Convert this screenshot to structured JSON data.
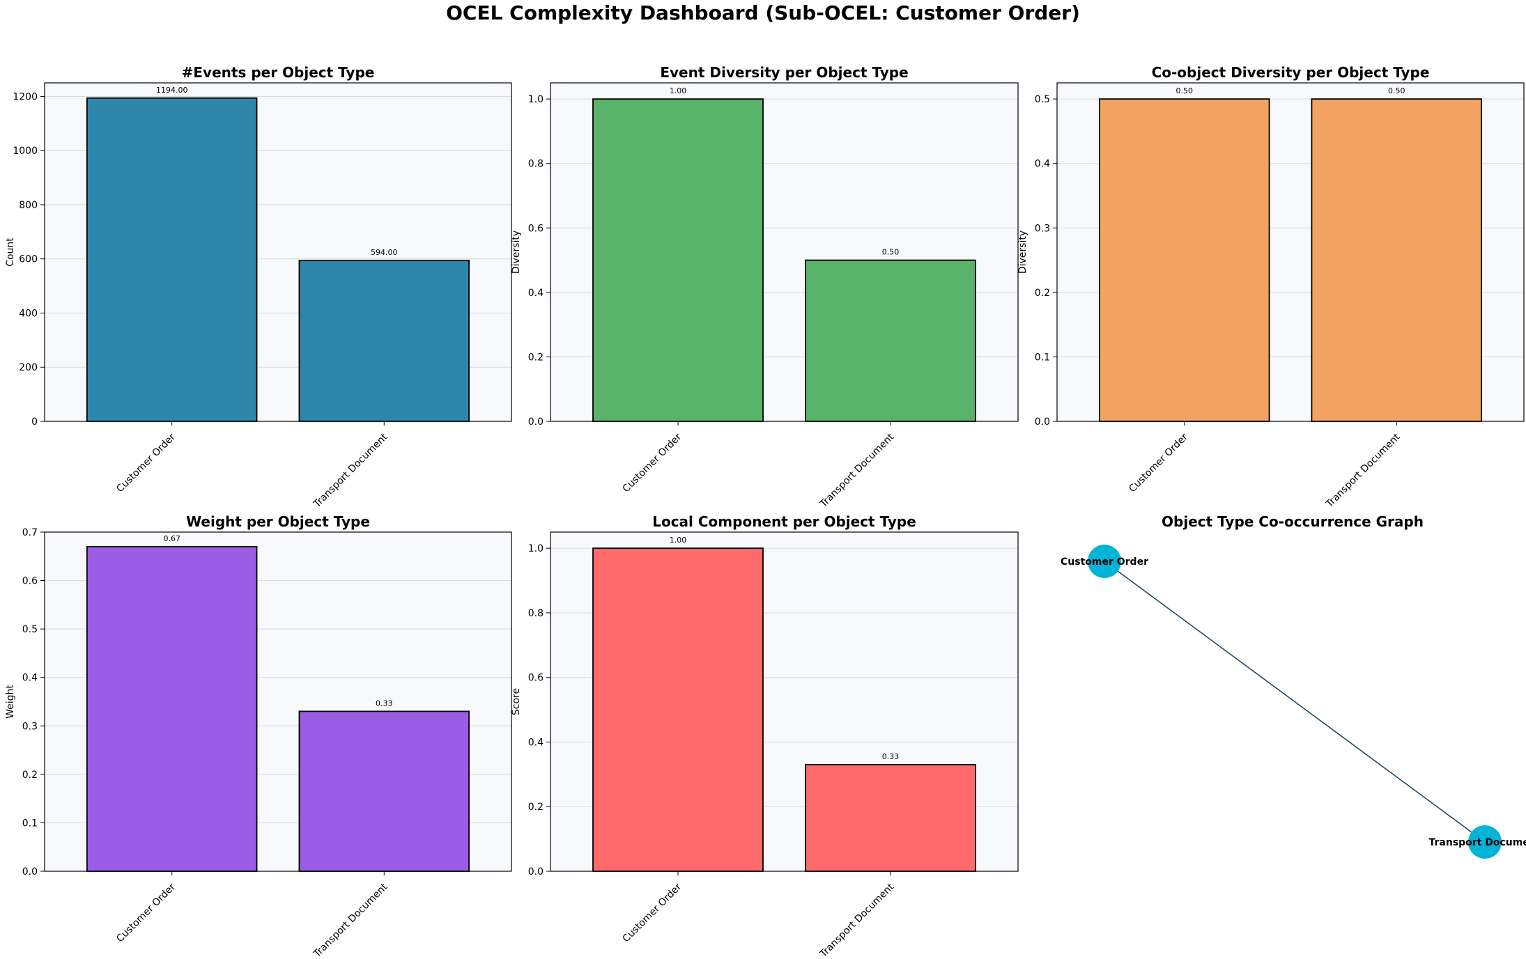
{
  "title": "OCEL Complexity Dashboard (Sub-OCEL: Customer Order)",
  "chart_data": [
    {
      "type": "bar",
      "title": "#Events per Object Type",
      "xlabel": "",
      "ylabel": "Count",
      "categories": [
        "Customer Order",
        "Transport Document"
      ],
      "values": [
        1194,
        594
      ],
      "value_labels": [
        "1194.00",
        "594.00"
      ],
      "ylim": [
        0,
        1250
      ],
      "yticks": [
        0,
        200,
        400,
        600,
        800,
        1000,
        1200
      ],
      "ytick_labels": [
        "0",
        "200",
        "400",
        "600",
        "800",
        "1000",
        "1200"
      ],
      "color": "#2E86AB",
      "grid": "horizontal"
    },
    {
      "type": "bar",
      "title": "Event Diversity per Object Type",
      "xlabel": "",
      "ylabel": "Diversity",
      "categories": [
        "Customer Order",
        "Transport Document"
      ],
      "values": [
        1.0,
        0.5
      ],
      "value_labels": [
        "1.00",
        "0.50"
      ],
      "ylim": [
        0,
        1.05
      ],
      "yticks": [
        0,
        0.2,
        0.4,
        0.6,
        0.8,
        1.0
      ],
      "ytick_labels": [
        "0.0",
        "0.2",
        "0.4",
        "0.6",
        "0.8",
        "1.0"
      ],
      "color": "#59B36A",
      "grid": "horizontal"
    },
    {
      "type": "bar",
      "title": "Co-object Diversity per Object Type",
      "xlabel": "",
      "ylabel": "Diversity",
      "categories": [
        "Customer Order",
        "Transport Document"
      ],
      "values": [
        0.5,
        0.5
      ],
      "value_labels": [
        "0.50",
        "0.50"
      ],
      "ylim": [
        0,
        0.525
      ],
      "yticks": [
        0,
        0.1,
        0.2,
        0.3,
        0.4,
        0.5
      ],
      "ytick_labels": [
        "0.0",
        "0.1",
        "0.2",
        "0.3",
        "0.4",
        "0.5"
      ],
      "color": "#F2A261",
      "grid": "horizontal"
    },
    {
      "type": "bar",
      "title": "Weight per Object Type",
      "xlabel": "",
      "ylabel": "Weight",
      "categories": [
        "Customer Order",
        "Transport Document"
      ],
      "values": [
        0.67,
        0.33
      ],
      "value_labels": [
        "0.67",
        "0.33"
      ],
      "ylim": [
        0,
        0.7
      ],
      "yticks": [
        0,
        0.1,
        0.2,
        0.3,
        0.4,
        0.5,
        0.6,
        0.7
      ],
      "ytick_labels": [
        "0.0",
        "0.1",
        "0.2",
        "0.3",
        "0.4",
        "0.5",
        "0.6",
        "0.7"
      ],
      "color": "#9B5DE5",
      "grid": "horizontal"
    },
    {
      "type": "bar",
      "title": "Local Component per Object Type",
      "xlabel": "",
      "ylabel": "Score",
      "categories": [
        "Customer Order",
        "Transport Document"
      ],
      "values": [
        1.0,
        0.33
      ],
      "value_labels": [
        "1.00",
        "0.33"
      ],
      "ylim": [
        0,
        1.05
      ],
      "yticks": [
        0,
        0.2,
        0.4,
        0.6,
        0.8,
        1.0
      ],
      "ytick_labels": [
        "0.0",
        "0.2",
        "0.4",
        "0.6",
        "0.8",
        "1.0"
      ],
      "color": "#FF6B6B",
      "grid": "horizontal"
    },
    {
      "type": "graph",
      "title": "Object Type Co-occurrence Graph",
      "nodes": [
        {
          "label": "Customer Order"
        },
        {
          "label": "Transport Document"
        }
      ],
      "edges": [
        [
          "Customer Order",
          "Transport Document"
        ]
      ],
      "node_color": "#00B4D8",
      "edge_color": "#1D3F5A"
    }
  ]
}
